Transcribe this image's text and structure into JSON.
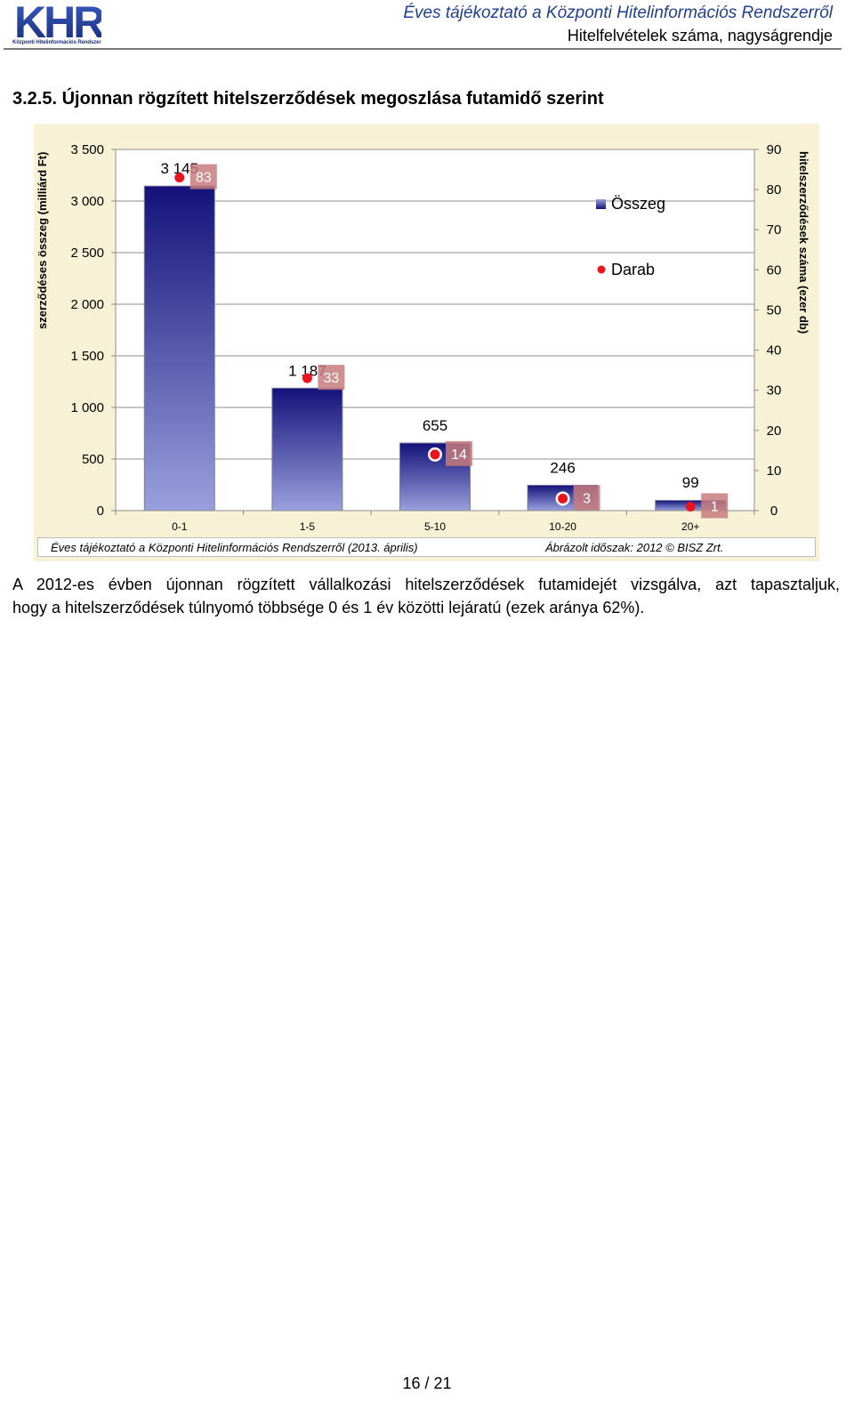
{
  "header": {
    "logo_text": "KHR",
    "logo_subtitle": "Központi Hitelinformációs Rendszer",
    "title": "Éves tájékoztató a Központi Hitelinformációs Rendszerről",
    "subtitle": "Hitelfelvételek száma, nagyságrendje"
  },
  "section": {
    "title": "3.2.5.  Újonnan rögzített hitelszerződések megoszlása futamidő szerint"
  },
  "colors": {
    "bar_dark": "#14127a",
    "bar_light": "#9aa0dc",
    "marker": "#e8141f",
    "label_box": "#c67d7d",
    "chart_bg": "#f7f2d5",
    "header_title": "#1f3f8f"
  },
  "chart_data": {
    "type": "bar",
    "categories": [
      "0-1",
      "1-5",
      "5-10",
      "10-20",
      "20+"
    ],
    "series": [
      {
        "name": "Összeg",
        "kind": "bar",
        "axis": "left",
        "values": [
          3145,
          1187,
          655,
          246,
          99
        ],
        "labels": [
          "3 145",
          "1 187",
          "655",
          "246",
          "99"
        ]
      },
      {
        "name": "Darab",
        "kind": "marker",
        "axis": "right",
        "values": [
          83,
          33,
          14,
          3,
          1
        ],
        "labels": [
          "83",
          "33",
          "14",
          "3",
          "1"
        ]
      }
    ],
    "ylabel": "szerződéses összeg (milliárd Ft)",
    "y2label": "hitelszerződések száma (ezer db)",
    "ylim": [
      0,
      3500
    ],
    "y2lim": [
      0,
      90
    ],
    "yticks": [
      "0",
      "500",
      "1 000",
      "1 500",
      "2 000",
      "2 500",
      "3 000",
      "3 500"
    ],
    "y2ticks": [
      "0",
      "10",
      "20",
      "30",
      "40",
      "50",
      "60",
      "70",
      "80",
      "90"
    ],
    "grid": true,
    "legend_position": "top-right"
  },
  "source": {
    "left": "Éves tájékoztató a Központi Hitelinformációs Rendszerről (2013. április)",
    "right": "Ábrázolt időszak: 2012 © BISZ Zrt."
  },
  "paragraph": {
    "line1": "A 2012-es évben újonnan rögzített vállalkozási hitelszerződések futamidejét vizsgálva, azt tapasztaljuk,",
    "line2": "hogy a hitelszerződések túlnyomó többsége 0 és 1 év közötti lejáratú (ezek aránya 62%)."
  },
  "footer": {
    "page": "16 / 21"
  }
}
